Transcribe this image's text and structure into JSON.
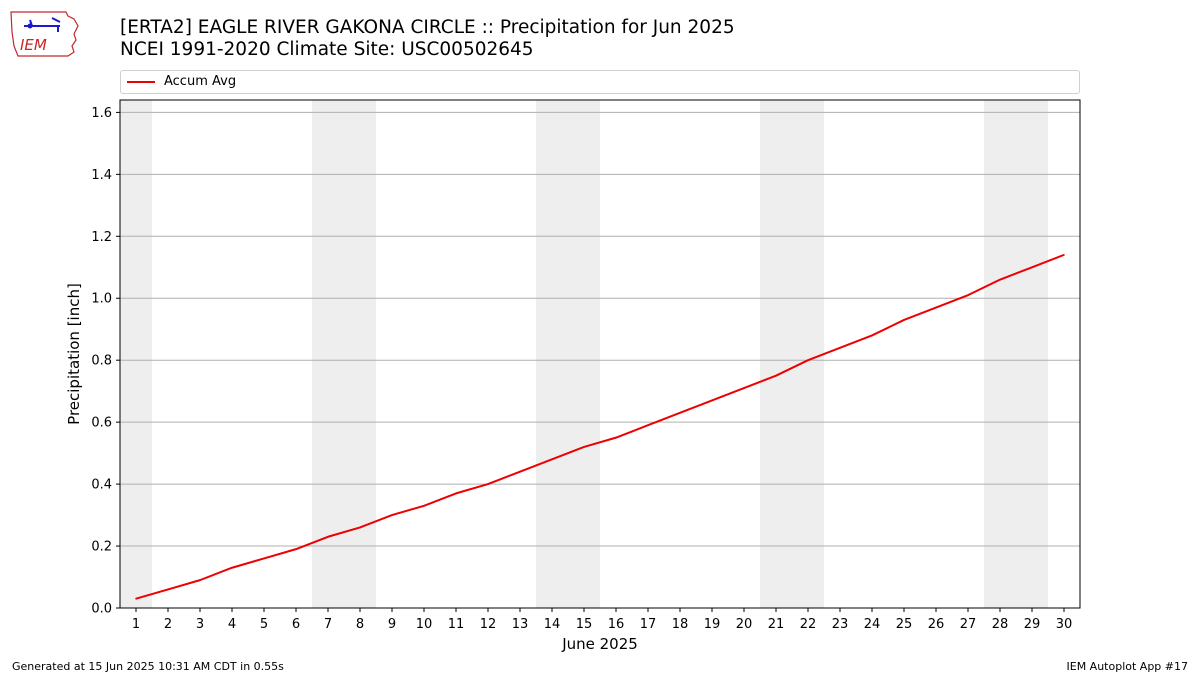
{
  "header": {
    "title_line1": "[ERTA2] EAGLE RIVER GAKONA CIRCLE :: Precipitation for Jun 2025",
    "title_line2": "NCEI 1991-2020 Climate Site: USC00502645",
    "logo_text": "IEM"
  },
  "footer": {
    "generated": "Generated at 15 Jun 2025 10:31 AM CDT in 0.55s",
    "app": "IEM Autoplot App #17"
  },
  "colors": {
    "line": "#ee0000",
    "weekend_band": "#eeeeee",
    "grid": "#b0b0b0",
    "logo": "#c62828",
    "logo_glyph": "#1a1acc"
  },
  "chart_data": {
    "type": "line",
    "xlabel": "June 2025",
    "ylabel": "Precipitation [inch]",
    "xlim": [
      0.5,
      30.5
    ],
    "ylim": [
      0,
      1.64
    ],
    "yticks": [
      0.0,
      0.2,
      0.4,
      0.6,
      0.8,
      1.0,
      1.2,
      1.4,
      1.6
    ],
    "ytick_labels": [
      "0.0",
      "0.2",
      "0.4",
      "0.6",
      "0.8",
      "1.0",
      "1.2",
      "1.4",
      "1.6"
    ],
    "x": [
      1,
      2,
      3,
      4,
      5,
      6,
      7,
      8,
      9,
      10,
      11,
      12,
      13,
      14,
      15,
      16,
      17,
      18,
      19,
      20,
      21,
      22,
      23,
      24,
      25,
      26,
      27,
      28,
      29,
      30
    ],
    "xtick_labels": [
      "1",
      "2",
      "3",
      "4",
      "5",
      "6",
      "7",
      "8",
      "9",
      "10",
      "11",
      "12",
      "13",
      "14",
      "15",
      "16",
      "17",
      "18",
      "19",
      "20",
      "21",
      "22",
      "23",
      "24",
      "25",
      "26",
      "27",
      "28",
      "29",
      "30"
    ],
    "weekend_days": [
      1,
      7,
      8,
      14,
      15,
      21,
      22,
      28,
      29
    ],
    "grid": "y",
    "legend_position": "top",
    "series": [
      {
        "name": "Accum Avg",
        "values": [
          0.03,
          0.06,
          0.09,
          0.13,
          0.16,
          0.19,
          0.23,
          0.26,
          0.3,
          0.33,
          0.37,
          0.4,
          0.44,
          0.48,
          0.52,
          0.55,
          0.59,
          0.63,
          0.67,
          0.71,
          0.75,
          0.8,
          0.84,
          0.88,
          0.93,
          0.97,
          1.01,
          1.06,
          1.1,
          1.14
        ]
      }
    ]
  }
}
